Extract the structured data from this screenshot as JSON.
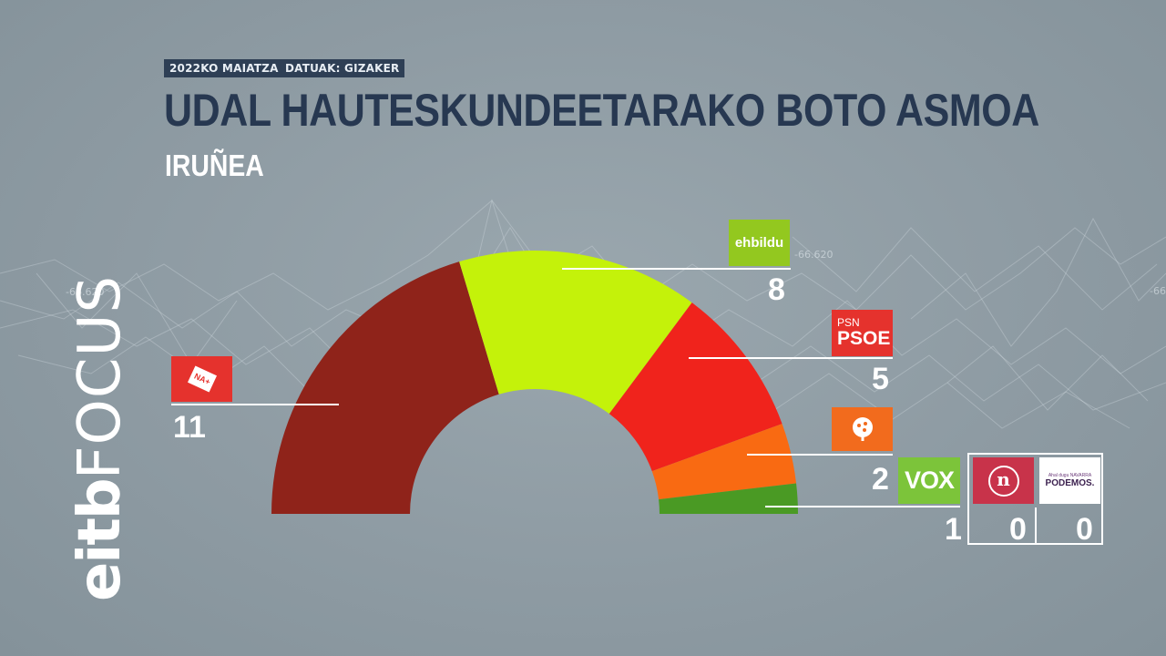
{
  "header": {
    "date_tag": "2022KO MAIATZA",
    "source_tag": "DATUAK: GIZAKER",
    "title": "UDAL HAUTESKUNDEETARAKO BOTO ASMOA",
    "subtitle": "IRUÑEA"
  },
  "brand": {
    "part1": "eitb",
    "part2": "FOCUS"
  },
  "background_numbers": [
    "-66.620",
    "-66.620",
    "-66"
  ],
  "chart_data": {
    "type": "pie",
    "layout": "parliament-hemicycle",
    "total_seats": 27,
    "series": [
      {
        "name": "NA+",
        "seats": 11,
        "color": "#8f231a"
      },
      {
        "name": "EH Bildu",
        "seats": 8,
        "color": "#c4f20a"
      },
      {
        "name": "PSN-PSOE",
        "seats": 5,
        "color": "#f0231c"
      },
      {
        "name": "Geroa Bai",
        "seats": 2,
        "color": "#f96a12"
      },
      {
        "name": "VOX",
        "seats": 1,
        "color": "#4a9a24"
      },
      {
        "name": "Navarra Suma / N",
        "seats": 0,
        "color": "#c8334a"
      },
      {
        "name": "Podemos",
        "seats": 0,
        "color": "#ffffff"
      }
    ]
  },
  "labels": {
    "na": {
      "logo_text": "NA+",
      "value": "11"
    },
    "bildu": {
      "logo_text": "ehbildu",
      "value": "8"
    },
    "psoe": {
      "logo_top": "PSN",
      "logo_main": "PSOE",
      "value": "5"
    },
    "geroa": {
      "value": "2"
    },
    "vox": {
      "logo_text": "VOX",
      "value": "1"
    },
    "n": {
      "logo_text": "n",
      "value": "0"
    },
    "podemos": {
      "logo_small": "Ahal dugu NAVARRA",
      "logo_text": "PODEMOS.",
      "value": "0"
    }
  },
  "colors": {
    "title": "#273851",
    "tag_bg": "#2e3f55",
    "vox_logo": "#7cc43a",
    "n_logo": "#c8334a",
    "na_logo": "#e5322d",
    "psoe_logo": "#e5322d",
    "geroa_logo": "#f26b1d",
    "bildu_logo": "#93c81f"
  }
}
